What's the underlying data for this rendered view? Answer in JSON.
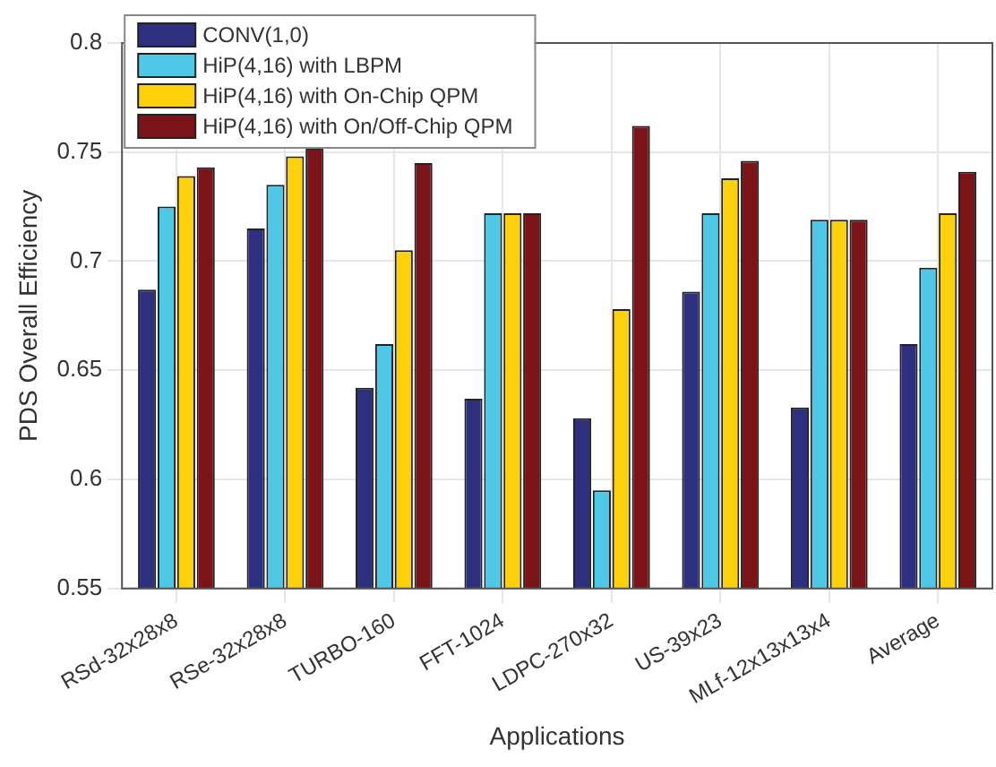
{
  "chart_data": {
    "type": "bar",
    "xlabel": "Applications",
    "ylabel": "PDS Overall Efficiency",
    "categories": [
      "RSd-32x28x8",
      "RSe-32x28x8",
      "TURBO-160",
      "FFT-1024",
      "LDPC-270x32",
      "US-39x23",
      "MLf-12x13x13x4",
      "Average"
    ],
    "series": [
      {
        "name": "CONV(1,0)",
        "color": "#2e2f7e",
        "values": [
          0.687,
          0.715,
          0.642,
          0.637,
          0.628,
          0.686,
          0.633,
          0.662
        ]
      },
      {
        "name": "HiP(4,16) with LBPM",
        "color": "#4fc8e8",
        "values": [
          0.725,
          0.735,
          0.662,
          0.722,
          0.595,
          0.722,
          0.719,
          0.697
        ]
      },
      {
        "name": "HiP(4,16) with On-Chip QPM",
        "color": "#fcd00a",
        "values": [
          0.739,
          0.748,
          0.705,
          0.722,
          0.678,
          0.738,
          0.719,
          0.722
        ]
      },
      {
        "name": "HiP(4,16) with On/Off-Chip QPM",
        "color": "#7b1419",
        "values": [
          0.743,
          0.752,
          0.745,
          0.722,
          0.762,
          0.746,
          0.719,
          0.741
        ]
      }
    ],
    "ylim": [
      0.55,
      0.8
    ],
    "yticks": [
      0.55,
      0.6,
      0.65,
      0.7,
      0.75,
      0.8
    ],
    "grid": true,
    "legend": "top left"
  }
}
